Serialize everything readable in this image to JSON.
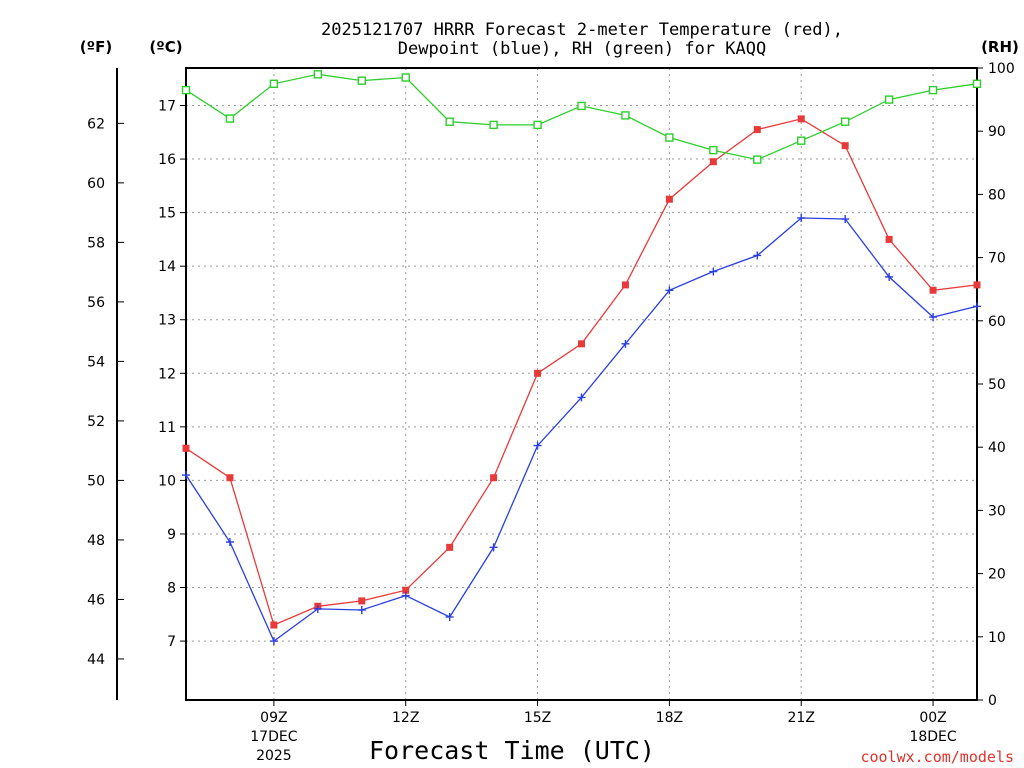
{
  "chart_data": {
    "type": "line",
    "title_line1": "2025121707 HRRR Forecast 2-meter Temperature (red),",
    "title_line2": "Dewpoint (blue), RH (green) for KAQQ",
    "xlabel": "Forecast Time (UTC)",
    "credit": "coolwx.com/models",
    "x_hours": [
      7,
      8,
      9,
      10,
      11,
      12,
      13,
      14,
      15,
      16,
      17,
      18,
      19,
      20,
      21,
      22,
      23,
      24,
      25
    ],
    "xlim": [
      7,
      25
    ],
    "x_ticks": [
      {
        "hour": 9,
        "label": "09Z",
        "sublabel": "17DEC",
        "year": "2025"
      },
      {
        "hour": 12,
        "label": "12Z",
        "sublabel": "",
        "year": ""
      },
      {
        "hour": 15,
        "label": "15Z",
        "sublabel": "",
        "year": ""
      },
      {
        "hour": 18,
        "label": "18Z",
        "sublabel": "",
        "year": ""
      },
      {
        "hour": 21,
        "label": "21Z",
        "sublabel": "",
        "year": ""
      },
      {
        "hour": 24,
        "label": "00Z",
        "sublabel": "18DEC",
        "year": ""
      }
    ],
    "axes": {
      "fahrenheit": {
        "unit_label": "(ºF)",
        "ticks": [
          44,
          46,
          48,
          50,
          52,
          54,
          56,
          58,
          60,
          62
        ]
      },
      "celsius": {
        "unit_label": "(ºC)",
        "ylim": [
          5.9,
          17.7
        ],
        "ticks": [
          7,
          8,
          9,
          10,
          11,
          12,
          13,
          14,
          15,
          16,
          17
        ]
      },
      "rh": {
        "unit_label": "(RH)",
        "ylim": [
          0,
          100
        ],
        "ticks": [
          0,
          10,
          20,
          30,
          40,
          50,
          60,
          70,
          80,
          90,
          100
        ]
      }
    },
    "series": [
      {
        "name": "Temperature",
        "unit": "C",
        "color": "#e83a3a",
        "marker": "filled-square",
        "values": [
          10.6,
          10.05,
          7.3,
          7.65,
          7.75,
          7.95,
          8.75,
          10.05,
          12.0,
          12.55,
          13.65,
          15.25,
          15.95,
          16.55,
          16.75,
          16.25,
          14.5,
          13.55,
          13.65
        ]
      },
      {
        "name": "Dewpoint",
        "unit": "C",
        "color": "#2a3fe0",
        "marker": "plus",
        "values": [
          10.1,
          8.85,
          7.0,
          7.6,
          7.58,
          7.85,
          7.45,
          8.75,
          10.65,
          11.55,
          12.55,
          13.55,
          13.9,
          14.2,
          14.9,
          14.88,
          13.8,
          13.05,
          13.25
        ]
      },
      {
        "name": "RH",
        "unit": "%",
        "color": "#2ccf2c",
        "marker": "open-square",
        "values": [
          96.5,
          92.0,
          97.5,
          99.0,
          98.0,
          98.5,
          91.5,
          91.0,
          91.0,
          94.0,
          92.5,
          89.0,
          87.0,
          85.5,
          88.5,
          91.5,
          95.0,
          96.5,
          97.5
        ]
      }
    ],
    "grid": true
  }
}
